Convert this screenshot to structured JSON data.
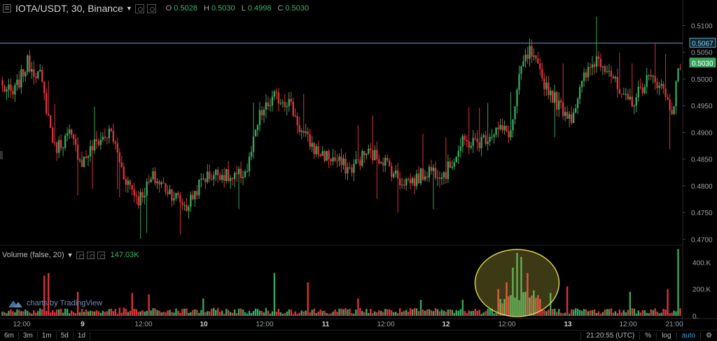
{
  "header": {
    "symbol": "IOTA/USDT, 30, Binance",
    "ohlc": [
      {
        "k": "O",
        "v": "0.5028"
      },
      {
        "k": "H",
        "v": "0.5030"
      },
      {
        "k": "L",
        "v": "0.4998"
      },
      {
        "k": "C",
        "v": "0.5030"
      }
    ]
  },
  "volume": {
    "title": "Volume (false, 20)",
    "value": "147.03K"
  },
  "watermark": "charts by TradingView",
  "toolbar": {
    "ranges": [
      "6m",
      "3m",
      "1m",
      "5d",
      "1d"
    ],
    "time": "21:20:55 (UTC)",
    "pct": "%",
    "log": "log",
    "auto": "auto"
  },
  "colors": {
    "up": "#3aa35c",
    "down": "#d6343a",
    "bg": "#000000",
    "ellipse": "#d8cf4a"
  },
  "chart_data": {
    "type": "candlestick",
    "symbol": "IOTA/USDT",
    "interval": "30",
    "exchange": "Binance",
    "ylim": [
      0.469,
      0.5115
    ],
    "price_ticks": [
      "0.5100",
      "0.5050",
      "0.5000",
      "0.4950",
      "0.4900",
      "0.4850",
      "0.4800",
      "0.4750",
      "0.4700"
    ],
    "price_markers": [
      {
        "label": "0.5067",
        "kind": "high",
        "color": "#5fa8c8"
      },
      {
        "label": "0.5030",
        "kind": "last",
        "color": "#3aa35c"
      }
    ],
    "x_ticks": [
      "12:00",
      "9",
      "12:00",
      "10",
      "12:00",
      "11",
      "12:00",
      "12",
      "12:00",
      "13",
      "12:00",
      "21:00"
    ],
    "anchors": [
      [
        0,
        0.4985
      ],
      [
        5,
        0.497
      ],
      [
        12,
        0.503
      ],
      [
        18,
        0.5005
      ],
      [
        25,
        0.487
      ],
      [
        32,
        0.4895
      ],
      [
        38,
        0.4845
      ],
      [
        45,
        0.4882
      ],
      [
        52,
        0.49
      ],
      [
        58,
        0.482
      ],
      [
        65,
        0.4775
      ],
      [
        72,
        0.4815
      ],
      [
        80,
        0.479
      ],
      [
        88,
        0.476
      ],
      [
        96,
        0.4815
      ],
      [
        104,
        0.4825
      ],
      [
        110,
        0.481
      ],
      [
        117,
        0.483
      ],
      [
        123,
        0.493
      ],
      [
        130,
        0.4965
      ],
      [
        137,
        0.4958
      ],
      [
        143,
        0.49
      ],
      [
        150,
        0.4865
      ],
      [
        158,
        0.485
      ],
      [
        166,
        0.483
      ],
      [
        174,
        0.4862
      ],
      [
        182,
        0.485
      ],
      [
        190,
        0.481
      ],
      [
        197,
        0.481
      ],
      [
        204,
        0.483
      ],
      [
        212,
        0.4825
      ],
      [
        220,
        0.488
      ],
      [
        228,
        0.4882
      ],
      [
        236,
        0.4905
      ],
      [
        243,
        0.49
      ],
      [
        248,
        0.502
      ],
      [
        252,
        0.505
      ],
      [
        258,
        0.5
      ],
      [
        266,
        0.495
      ],
      [
        272,
        0.493
      ],
      [
        278,
        0.5
      ],
      [
        284,
        0.504
      ],
      [
        290,
        0.502
      ],
      [
        296,
        0.496
      ],
      [
        302,
        0.496
      ],
      [
        308,
        0.5
      ],
      [
        314,
        0.4995
      ],
      [
        320,
        0.494
      ],
      [
        324,
        0.503
      ]
    ],
    "volume_ticks": [
      "400.K",
      "200.K",
      "0."
    ],
    "volume_max": 480,
    "volume_peaks": [
      [
        20,
        300
      ],
      [
        22,
        320
      ],
      [
        36,
        180
      ],
      [
        62,
        170
      ],
      [
        70,
        160
      ],
      [
        96,
        130
      ],
      [
        130,
        320
      ],
      [
        146,
        250
      ],
      [
        170,
        130
      ],
      [
        200,
        120
      ],
      [
        220,
        120
      ],
      [
        237,
        200
      ],
      [
        241,
        250
      ],
      [
        244,
        360
      ],
      [
        246,
        470
      ],
      [
        248,
        440
      ],
      [
        251,
        320
      ],
      [
        254,
        190
      ],
      [
        262,
        170
      ],
      [
        270,
        220
      ],
      [
        300,
        180
      ],
      [
        318,
        200
      ],
      [
        323,
        500
      ],
      [
        326,
        320
      ],
      [
        328,
        290
      ],
      [
        330,
        190
      ],
      [
        333,
        160
      ],
      [
        335,
        140
      ]
    ],
    "highlight": {
      "shape": "ellipse",
      "panel": "volume",
      "label": ""
    }
  }
}
